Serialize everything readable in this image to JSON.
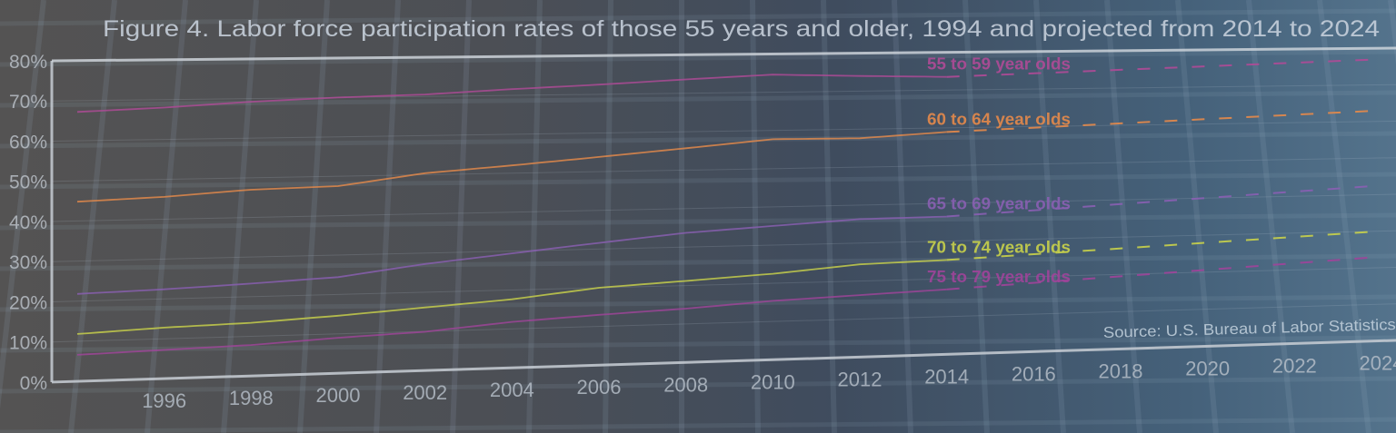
{
  "chart_data": {
    "type": "line",
    "title": "Figure 4. Labor force participation rates of those 55 years and older, 1994 and projected from 2014 to 2024",
    "source": "Source: U.S. Bureau of Labor Statistics",
    "xlabel": "",
    "ylabel": "",
    "ylim": [
      0,
      80
    ],
    "xlim": [
      1994,
      2024
    ],
    "y_ticks": [
      "0%",
      "10%",
      "20%",
      "30%",
      "40%",
      "50%",
      "60%",
      "70%",
      "80%"
    ],
    "x_ticks": [
      "1996",
      "1998",
      "2000",
      "2002",
      "2004",
      "2006",
      "2008",
      "2010",
      "2012",
      "2014",
      "2016",
      "2018",
      "2020",
      "2022",
      "2024"
    ],
    "grid": true,
    "series": [
      {
        "name": "55 to 59 year olds",
        "color": "#b04a97",
        "historical": {
          "x": [
            1994,
            1996,
            1998,
            2000,
            2002,
            2004,
            2006,
            2008,
            2010,
            2012,
            2014
          ],
          "y": [
            67.2,
            68.0,
            69.2,
            70.0,
            70.5,
            71.6,
            72.5,
            73.6,
            74.6,
            74.0,
            73.5
          ]
        },
        "projected": {
          "x": [
            2014,
            2024
          ],
          "y": [
            73.5,
            77.0
          ]
        }
      },
      {
        "name": "60 to 64 year olds",
        "color": "#e58a4a",
        "historical": {
          "x": [
            1994,
            1996,
            1998,
            2000,
            2002,
            2004,
            2006,
            2008,
            2010,
            2012,
            2014
          ],
          "y": [
            44.8,
            45.6,
            47.0,
            47.5,
            50.4,
            52.0,
            53.8,
            55.7,
            57.7,
            57.6,
            58.9
          ]
        },
        "projected": {
          "x": [
            2014,
            2024
          ],
          "y": [
            58.9,
            63.0
          ]
        }
      },
      {
        "name": "65 to 69 year olds",
        "color": "#8a5fb2",
        "historical": {
          "x": [
            1994,
            1996,
            1998,
            2000,
            2002,
            2004,
            2006,
            2008,
            2010,
            2012,
            2014
          ],
          "y": [
            21.8,
            22.4,
            23.3,
            24.4,
            27.2,
            29.4,
            31.6,
            33.7,
            35.0,
            36.3,
            36.5
          ]
        },
        "projected": {
          "x": [
            2014,
            2024
          ],
          "y": [
            36.5,
            42.5
          ]
        }
      },
      {
        "name": "70 to 74 year olds",
        "color": "#c9d24a",
        "historical": {
          "x": [
            1994,
            1996,
            1998,
            2000,
            2002,
            2004,
            2006,
            2008,
            2010,
            2012,
            2014
          ],
          "y": [
            11.8,
            12.8,
            13.4,
            14.6,
            16.1,
            17.6,
            20.0,
            21.2,
            22.5,
            24.4,
            25.0
          ]
        },
        "projected": {
          "x": [
            2014,
            2024
          ],
          "y": [
            25.0,
            30.0
          ]
        }
      },
      {
        "name": "75 to 79 year olds",
        "color": "#a0449a",
        "historical": {
          "x": [
            1994,
            1996,
            1998,
            2000,
            2002,
            2004,
            2006,
            2008,
            2010,
            2012,
            2014
          ],
          "y": [
            6.6,
            7.2,
            7.8,
            9.0,
            9.9,
            11.8,
            13.0,
            14.0,
            15.4,
            16.3,
            17.2
          ]
        },
        "projected": {
          "x": [
            2014,
            2024
          ],
          "y": [
            17.2,
            23.0
          ]
        }
      }
    ]
  }
}
